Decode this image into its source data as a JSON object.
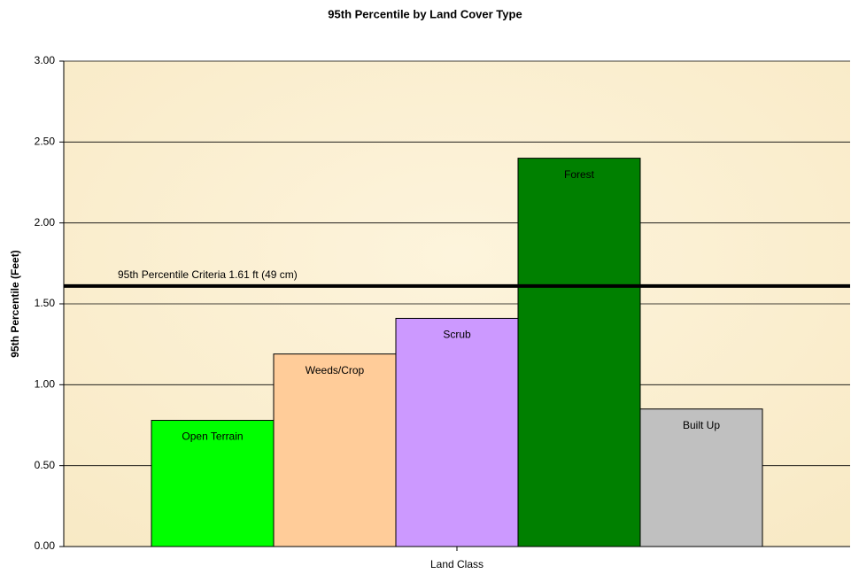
{
  "chart_data": {
    "type": "bar",
    "title": "95th Percentile by Land Cover Type",
    "x_label": "Land Class",
    "y_label": "95th Percentile (Feet)",
    "categories": [
      "Open Terrain",
      "Weeds/Crop",
      "Scrub",
      "Forest",
      "Built Up"
    ],
    "values": [
      0.78,
      1.19,
      1.41,
      2.4,
      0.85
    ],
    "colors": [
      "#00ff00",
      "#ffcc99",
      "#cc99ff",
      "#008000",
      "#c0c0c0"
    ],
    "ylim": [
      0,
      3
    ],
    "yticks": [
      {
        "value": 0,
        "label": "0.00"
      },
      {
        "value": 0.5,
        "label": "0.50"
      },
      {
        "value": 1,
        "label": "1.00"
      },
      {
        "value": 1.5,
        "label": "1.50"
      },
      {
        "value": 2,
        "label": "2.00"
      },
      {
        "value": 2.5,
        "label": "2.50"
      },
      {
        "value": 3,
        "label": "3.00"
      }
    ],
    "grid": true,
    "reference_line": {
      "value": 1.61,
      "label": "95th Percentile Criteria 1.61 ft (49 cm)"
    }
  }
}
